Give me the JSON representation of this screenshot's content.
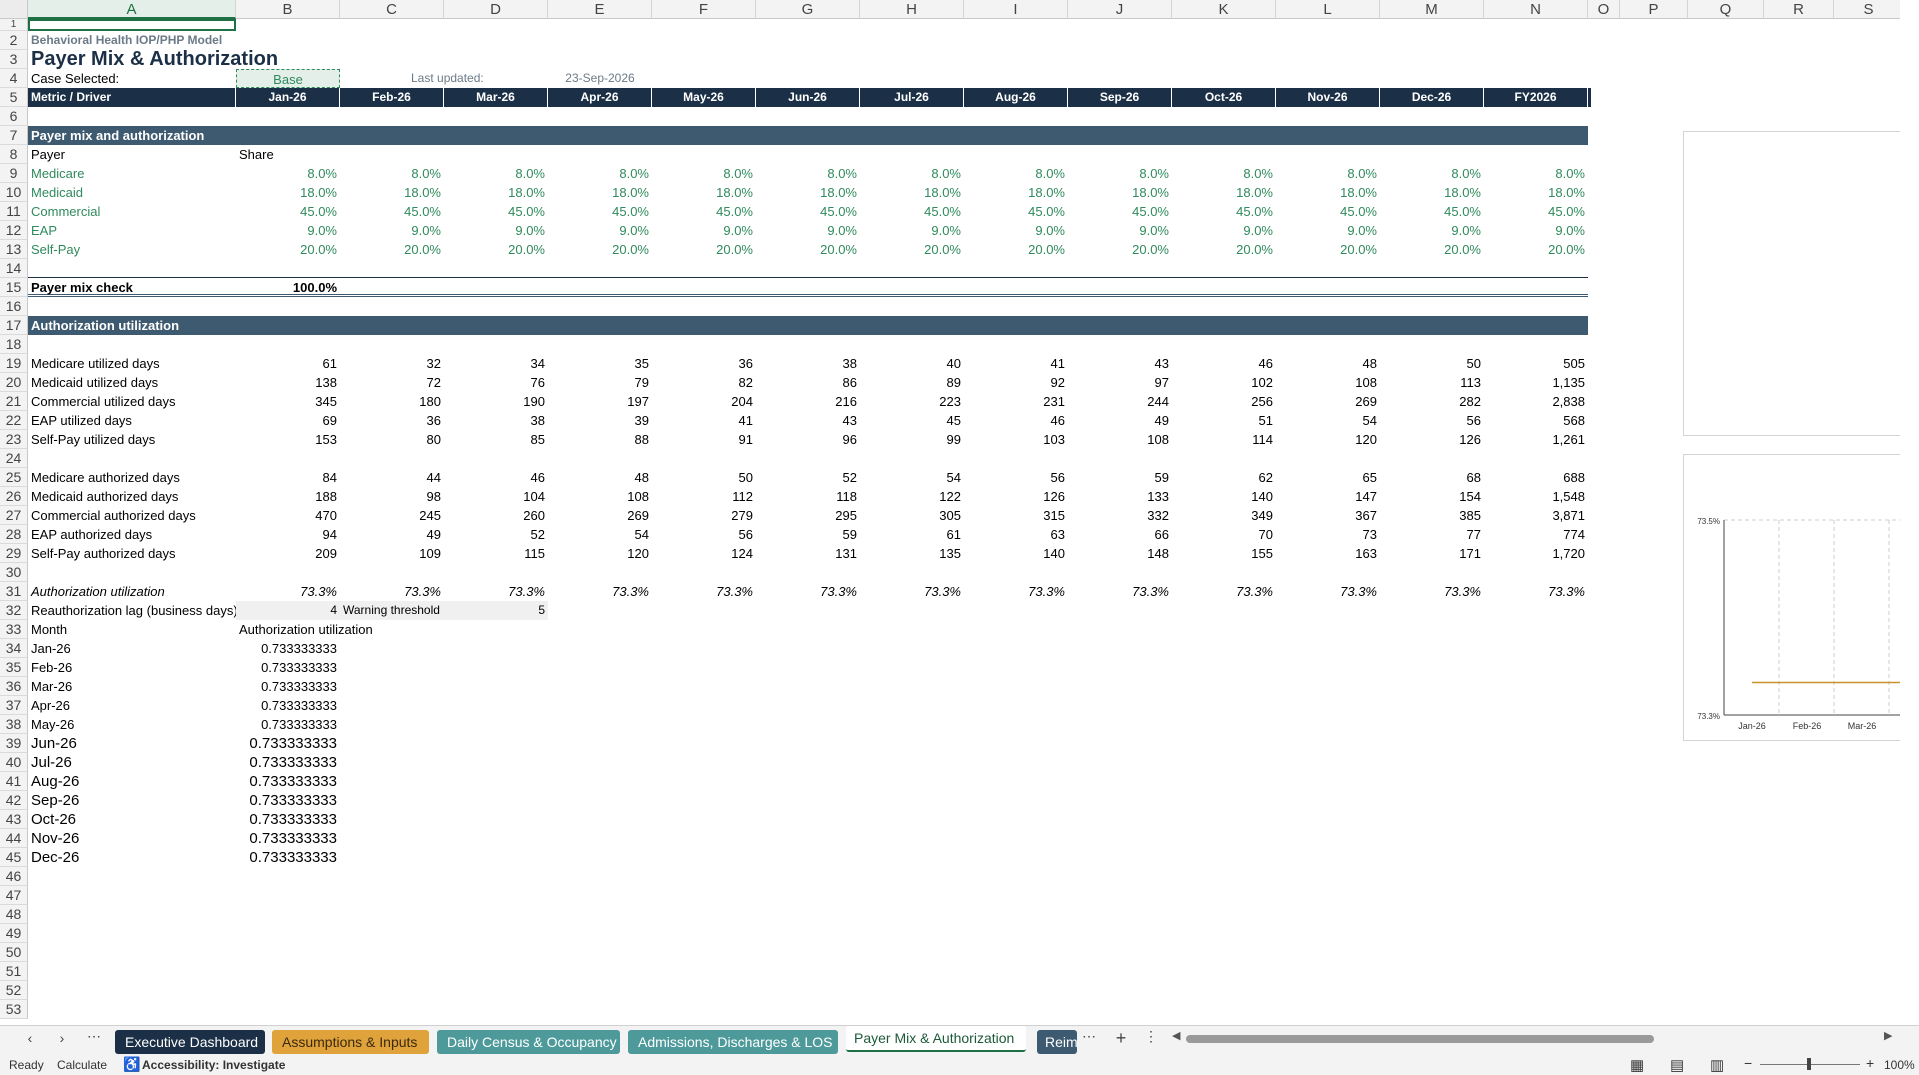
{
  "columns": [
    "A",
    "B",
    "C",
    "D",
    "E",
    "F",
    "G",
    "H",
    "I",
    "J",
    "K",
    "L",
    "M",
    "N",
    "O",
    "P",
    "Q",
    "R",
    "S"
  ],
  "rows": [
    1,
    2,
    3,
    4,
    5,
    6,
    7,
    8,
    9,
    10,
    11,
    12,
    13,
    14,
    15,
    16,
    17,
    18,
    19,
    20,
    21,
    22,
    23,
    24,
    25,
    26,
    27,
    28,
    29,
    30,
    31,
    32,
    33,
    34,
    35,
    36,
    37,
    38,
    39,
    40,
    41,
    42,
    43,
    44,
    45,
    46,
    47,
    48,
    49,
    50,
    51,
    52,
    53
  ],
  "sheet": {
    "subtitle": "Behavioral Health IOP/PHP Model",
    "title": "Payer Mix & Authorization",
    "case_label": "Case Selected:",
    "case_value": "Base",
    "last_updated_label": "Last updated:",
    "last_updated_value": "23-Sep-2026",
    "header_row": [
      "Metric / Driver",
      "Jan-26",
      "Feb-26",
      "Mar-26",
      "Apr-26",
      "May-26",
      "Jun-26",
      "Jul-26",
      "Aug-26",
      "Sep-26",
      "Oct-26",
      "Nov-26",
      "Dec-26",
      "FY2026"
    ],
    "section_payer": "Payer mix and authorization",
    "payer_label": "Payer",
    "share_label": "Share",
    "payer_rows": [
      {
        "name": "Medicare",
        "vals": [
          "8.0%",
          "8.0%",
          "8.0%",
          "8.0%",
          "8.0%",
          "8.0%",
          "8.0%",
          "8.0%",
          "8.0%",
          "8.0%",
          "8.0%",
          "8.0%",
          "8.0%"
        ]
      },
      {
        "name": "Medicaid",
        "vals": [
          "18.0%",
          "18.0%",
          "18.0%",
          "18.0%",
          "18.0%",
          "18.0%",
          "18.0%",
          "18.0%",
          "18.0%",
          "18.0%",
          "18.0%",
          "18.0%",
          "18.0%"
        ]
      },
      {
        "name": "Commercial",
        "vals": [
          "45.0%",
          "45.0%",
          "45.0%",
          "45.0%",
          "45.0%",
          "45.0%",
          "45.0%",
          "45.0%",
          "45.0%",
          "45.0%",
          "45.0%",
          "45.0%",
          "45.0%"
        ]
      },
      {
        "name": "EAP",
        "vals": [
          "9.0%",
          "9.0%",
          "9.0%",
          "9.0%",
          "9.0%",
          "9.0%",
          "9.0%",
          "9.0%",
          "9.0%",
          "9.0%",
          "9.0%",
          "9.0%",
          "9.0%"
        ]
      },
      {
        "name": "Self-Pay",
        "vals": [
          "20.0%",
          "20.0%",
          "20.0%",
          "20.0%",
          "20.0%",
          "20.0%",
          "20.0%",
          "20.0%",
          "20.0%",
          "20.0%",
          "20.0%",
          "20.0%",
          "20.0%"
        ]
      }
    ],
    "check_label": "Payer mix check",
    "check_value": "100.0%",
    "section_auth": "Authorization utilization",
    "utilized_rows": [
      {
        "name": "Medicare utilized days",
        "vals": [
          "61",
          "32",
          "34",
          "35",
          "36",
          "38",
          "40",
          "41",
          "43",
          "46",
          "48",
          "50",
          "505"
        ]
      },
      {
        "name": "Medicaid utilized days",
        "vals": [
          "138",
          "72",
          "76",
          "79",
          "82",
          "86",
          "89",
          "92",
          "97",
          "102",
          "108",
          "113",
          "1,135"
        ]
      },
      {
        "name": "Commercial utilized days",
        "vals": [
          "345",
          "180",
          "190",
          "197",
          "204",
          "216",
          "223",
          "231",
          "244",
          "256",
          "269",
          "282",
          "2,838"
        ]
      },
      {
        "name": "EAP utilized days",
        "vals": [
          "69",
          "36",
          "38",
          "39",
          "41",
          "43",
          "45",
          "46",
          "49",
          "51",
          "54",
          "56",
          "568"
        ]
      },
      {
        "name": "Self-Pay utilized days",
        "vals": [
          "153",
          "80",
          "85",
          "88",
          "91",
          "96",
          "99",
          "103",
          "108",
          "114",
          "120",
          "126",
          "1,261"
        ]
      }
    ],
    "authorized_rows": [
      {
        "name": "Medicare authorized days",
        "vals": [
          "84",
          "44",
          "46",
          "48",
          "50",
          "52",
          "54",
          "56",
          "59",
          "62",
          "65",
          "68",
          "688"
        ]
      },
      {
        "name": "Medicaid authorized days",
        "vals": [
          "188",
          "98",
          "104",
          "108",
          "112",
          "118",
          "122",
          "126",
          "133",
          "140",
          "147",
          "154",
          "1,548"
        ]
      },
      {
        "name": "Commercial authorized days",
        "vals": [
          "470",
          "245",
          "260",
          "269",
          "279",
          "295",
          "305",
          "315",
          "332",
          "349",
          "367",
          "385",
          "3,871"
        ]
      },
      {
        "name": "EAP authorized days",
        "vals": [
          "94",
          "49",
          "52",
          "54",
          "56",
          "59",
          "61",
          "63",
          "66",
          "70",
          "73",
          "77",
          "774"
        ]
      },
      {
        "name": "Self-Pay authorized days",
        "vals": [
          "209",
          "109",
          "115",
          "120",
          "124",
          "131",
          "135",
          "140",
          "148",
          "155",
          "163",
          "171",
          "1,720"
        ]
      }
    ],
    "util_row": {
      "name": "Authorization utilization",
      "vals": [
        "73.3%",
        "73.3%",
        "73.3%",
        "73.3%",
        "73.3%",
        "73.3%",
        "73.3%",
        "73.3%",
        "73.3%",
        "73.3%",
        "73.3%",
        "73.3%",
        "73.3%"
      ]
    },
    "reauth_label": "Reauthorization lag (business days)",
    "reauth_value": "4",
    "warning_label": "Warning threshold",
    "warning_value": "5",
    "month_header": "Month",
    "auth_util_header": "Authorization utilization",
    "month_table": [
      {
        "m": "Jan-26",
        "v": "0.733333333"
      },
      {
        "m": "Feb-26",
        "v": "0.733333333"
      },
      {
        "m": "Mar-26",
        "v": "0.733333333"
      },
      {
        "m": "Apr-26",
        "v": "0.733333333"
      },
      {
        "m": "May-26",
        "v": "0.733333333"
      },
      {
        "m": "Jun-26",
        "v": "0.733333333"
      },
      {
        "m": "Jul-26",
        "v": "0.733333333"
      },
      {
        "m": "Aug-26",
        "v": "0.733333333"
      },
      {
        "m": "Sep-26",
        "v": "0.733333333"
      },
      {
        "m": "Oct-26",
        "v": "0.733333333"
      },
      {
        "m": "Nov-26",
        "v": "0.733333333"
      },
      {
        "m": "Dec-26",
        "v": "0.733333333"
      }
    ]
  },
  "chart_data": {
    "type": "line",
    "categories": [
      "Jan-26",
      "Feb-26",
      "Mar-26"
    ],
    "series": [
      {
        "values": [
          0.733333333,
          0.733333333,
          0.733333333
        ]
      }
    ],
    "y_tick_labels": [
      "73.5%",
      "73.3%"
    ],
    "ylim": [
      0.733,
      0.735
    ],
    "line_color": "#c8922a",
    "grid": true
  },
  "tabs": [
    {
      "label": "Executive Dashboard",
      "bg": "#1b3047",
      "fg": "#ffffff"
    },
    {
      "label": "Assumptions & Inputs",
      "bg": "#e0a23a",
      "fg": "#3a2a10"
    },
    {
      "label": "Daily Census & Occupancy",
      "bg": "#4e9a9a",
      "fg": "#ffffff"
    },
    {
      "label": "Admissions, Discharges & LOS",
      "bg": "#4e9a9a",
      "fg": "#ffffff"
    },
    {
      "label": "Payer Mix & Authorization",
      "bg": "#ffffff",
      "fg": "#1e5a3a",
      "active": true
    },
    {
      "label": "Reim",
      "bg": "#3d5a70",
      "fg": "#ffffff"
    }
  ],
  "status": {
    "ready": "Ready",
    "calculate": "Calculate",
    "accessibility": "Accessibility: Investigate",
    "zoom": "100%"
  }
}
